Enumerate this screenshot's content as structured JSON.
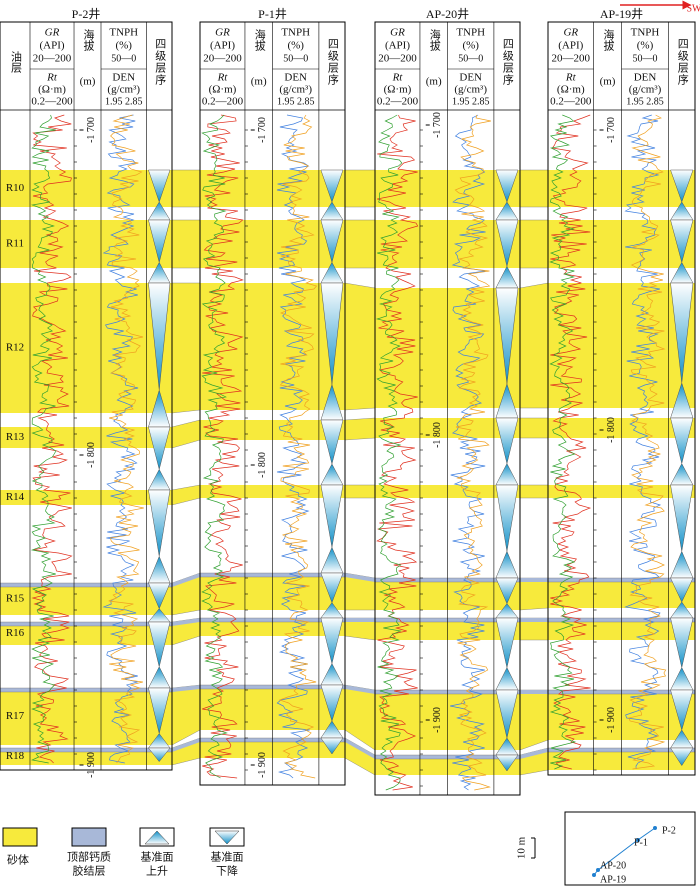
{
  "direction": "SW",
  "header": {
    "oil_layer": "油层",
    "gr": "GR",
    "api": "(API)",
    "gr_range": "20—200",
    "rt": "Rt",
    "rt_unit": "(Ω·m)",
    "rt_range": "0.2—200",
    "elev": "海拔",
    "elev_unit": "(m)",
    "tnph": "TNPH",
    "pct": "(%)",
    "tnph_range": "50—0",
    "den": "DEN",
    "den_unit": "(g/cm³)",
    "den_range": "1.95 2.85",
    "sequence": "四级层序"
  },
  "wells": [
    {
      "name": "P-2井",
      "depths": [
        "-1 700",
        "-1 800",
        "-1 900"
      ]
    },
    {
      "name": "P-1井",
      "depths": [
        "-1 700",
        "-1 800",
        "-1 900"
      ]
    },
    {
      "name": "AP-20井",
      "depths": [
        "-1 700",
        "-1 800",
        "-1 900"
      ]
    },
    {
      "name": "AP-19井",
      "depths": [
        "-1 700",
        "-1 800",
        "-1 900"
      ]
    }
  ],
  "layers": [
    "R10",
    "R11",
    "R12",
    "R13",
    "R14",
    "R15",
    "R16",
    "R17",
    "R18"
  ],
  "legend": [
    {
      "label": [
        "砂体"
      ]
    },
    {
      "label": [
        "顶部钙质",
        "胶结层"
      ]
    },
    {
      "label": [
        "基准面",
        "上升"
      ]
    },
    {
      "label": [
        "基准面",
        "下降"
      ]
    }
  ],
  "scale": "10 m",
  "map": {
    "labels": [
      "P-2",
      "P-1",
      "AP-20",
      "AP-19"
    ]
  }
}
